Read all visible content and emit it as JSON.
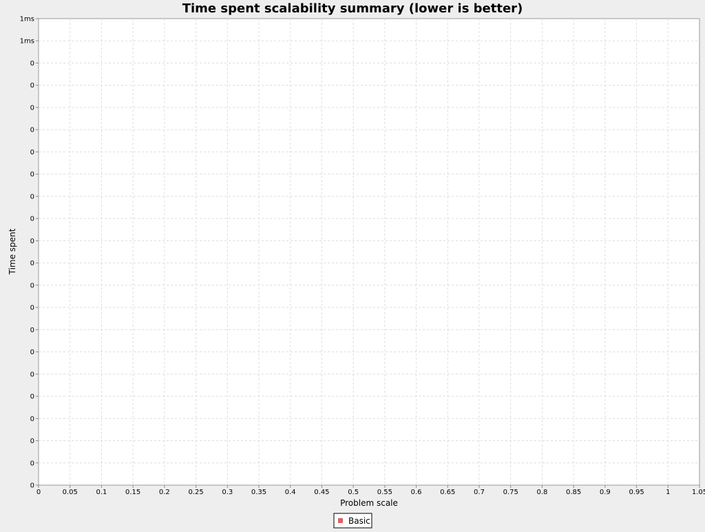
{
  "chart_data": {
    "type": "scatter",
    "title": "Time spent scalability summary (lower is better)",
    "xlabel": "Problem scale",
    "ylabel": "Time spent",
    "xlim": [
      0,
      1.05
    ],
    "x_ticks": [
      "0",
      "0.05",
      "0.1",
      "0.15",
      "0.2",
      "0.25",
      "0.3",
      "0.35",
      "0.4",
      "0.45",
      "0.5",
      "0.55",
      "0.6",
      "0.65",
      "0.7",
      "0.75",
      "0.8",
      "0.85",
      "0.9",
      "0.95",
      "1",
      "1.05"
    ],
    "y_ticks": [
      "1ms",
      "1ms",
      "0",
      "0",
      "0",
      "0",
      "0",
      "0",
      "0",
      "0",
      "0",
      "0",
      "0",
      "0",
      "0",
      "0",
      "0",
      "0",
      "0",
      "0",
      "0",
      "0"
    ],
    "grid": true,
    "legend_position": "bottom-center",
    "series": [
      {
        "name": "Basic",
        "color": "#e06060",
        "x": [],
        "y": []
      }
    ]
  }
}
